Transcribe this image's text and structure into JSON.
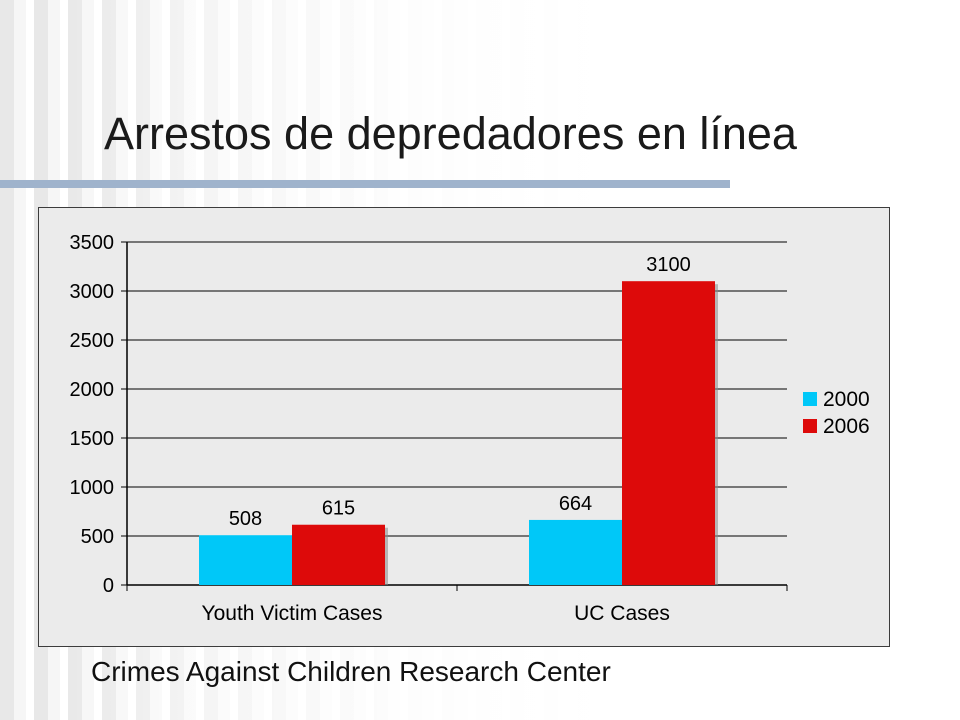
{
  "slide": {
    "title": "Arrestos de depredadores en línea",
    "footer": "Crimes Against Children Research Center"
  },
  "colors": {
    "series_2000": "#00c8f8",
    "series_2006": "#dd0a0a",
    "title_rule": "#9fb3cc",
    "plot_background": "#ebebeb"
  },
  "chart_data": {
    "type": "bar",
    "categories": [
      "Youth Victim Cases",
      "UC Cases"
    ],
    "series": [
      {
        "name": "2000",
        "values": [
          508,
          664
        ]
      },
      {
        "name": "2006",
        "values": [
          615,
          3100
        ]
      }
    ],
    "data_labels": [
      [
        "508",
        "664"
      ],
      [
        "615",
        "3100"
      ]
    ],
    "yticks": [
      0,
      500,
      1000,
      1500,
      2000,
      2500,
      3000,
      3500
    ],
    "ylim": [
      0,
      3500
    ],
    "grid": true,
    "legend_position": "right",
    "title": "",
    "xlabel": "",
    "ylabel": ""
  }
}
